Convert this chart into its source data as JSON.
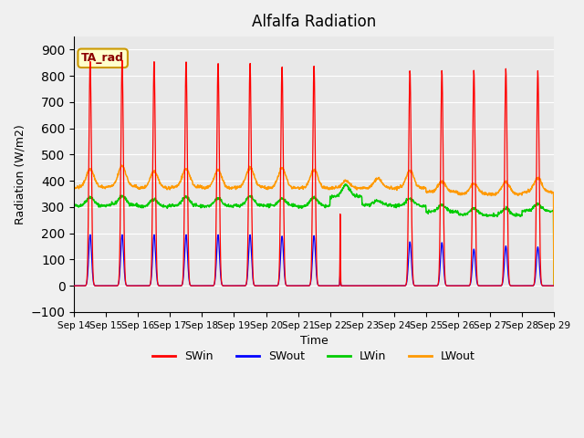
{
  "title": "Alfalfa Radiation",
  "ylabel": "Radiation (W/m2)",
  "xlabel": "Time",
  "ylim": [
    -100,
    950
  ],
  "yticks": [
    -100,
    0,
    100,
    200,
    300,
    400,
    500,
    600,
    700,
    800,
    900
  ],
  "xtick_labels": [
    "Sep 14",
    "Sep 15",
    "Sep 16",
    "Sep 17",
    "Sep 18",
    "Sep 19",
    "Sep 20",
    "Sep 21",
    "Sep 22",
    "Sep 23",
    "Sep 24",
    "Sep 25",
    "Sep 26",
    "Sep 27",
    "Sep 28",
    "Sep 29"
  ],
  "colors": {
    "SWin": "#ff0000",
    "SWout": "#0000ff",
    "LWin": "#00cc00",
    "LWout": "#ff9900"
  },
  "legend_label": "TA_rad",
  "plot_bg": "#e8e8e8",
  "fig_bg": "#f0f0f0",
  "grid_color": "#ffffff",
  "annot_face": "#ffffcc",
  "annot_edge": "#cc9900",
  "sw_peaks": [
    855,
    860,
    855,
    855,
    850,
    852,
    840,
    845,
    0,
    0,
    822,
    822,
    822,
    828,
    820
  ],
  "swout_peaks": [
    195,
    195,
    195,
    195,
    195,
    195,
    190,
    192,
    0,
    0,
    168,
    165,
    140,
    152,
    148
  ],
  "lwin_base": [
    305,
    308,
    302,
    305,
    303,
    306,
    305,
    303,
    340,
    308,
    305,
    282,
    270,
    268,
    285
  ],
  "lwin_peak": [
    338,
    342,
    330,
    338,
    333,
    340,
    332,
    335,
    385,
    325,
    332,
    308,
    295,
    295,
    310
  ],
  "lwout_base": [
    375,
    378,
    373,
    376,
    372,
    376,
    373,
    372,
    372,
    373,
    373,
    358,
    350,
    350,
    358
  ],
  "lwout_peak": [
    445,
    458,
    438,
    446,
    440,
    450,
    448,
    441,
    400,
    410,
    440,
    398,
    390,
    395,
    410
  ]
}
